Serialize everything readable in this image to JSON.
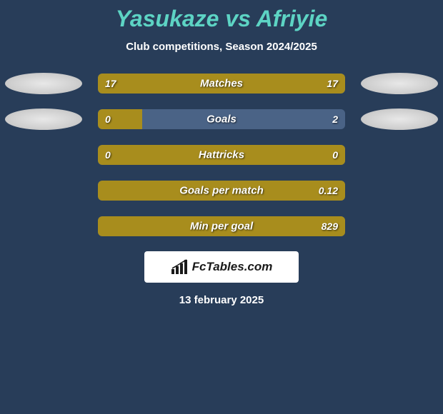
{
  "header": {
    "title": "Yasukaze vs Afriyie",
    "subtitle": "Club competitions, Season 2024/2025"
  },
  "rows": [
    {
      "label": "Matches",
      "left_val": "17",
      "right_val": "17",
      "left_fill_pct": 50,
      "right_fill_pct": 50,
      "show_ellipses": true
    },
    {
      "label": "Goals",
      "left_val": "0",
      "right_val": "2",
      "left_fill_pct": 18,
      "right_fill_pct": 0,
      "show_ellipses": true
    },
    {
      "label": "Hattricks",
      "left_val": "0",
      "right_val": "0",
      "left_fill_pct": 100,
      "right_fill_pct": 0,
      "show_ellipses": false
    },
    {
      "label": "Goals per match",
      "left_val": "",
      "right_val": "0.12",
      "left_fill_pct": 100,
      "right_fill_pct": 0,
      "show_ellipses": false
    },
    {
      "label": "Min per goal",
      "left_val": "",
      "right_val": "829",
      "left_fill_pct": 100,
      "right_fill_pct": 0,
      "show_ellipses": false
    }
  ],
  "footer": {
    "logo_text": "FcTables.com",
    "date": "13 february 2025"
  },
  "colors": {
    "background": "#283d59",
    "title": "#5dd4c4",
    "bar_bg": "#4a6386",
    "bar_fill": "#a88d1d",
    "text": "#ffffff"
  }
}
